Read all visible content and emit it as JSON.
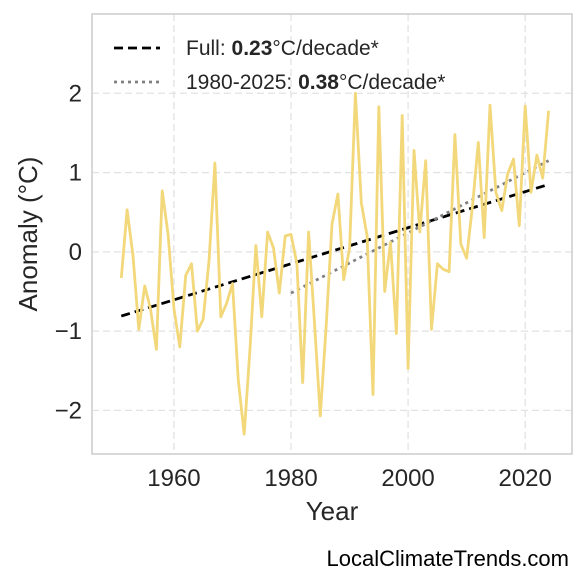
{
  "chart_data": {
    "type": "line",
    "xlabel": "Year",
    "ylabel": "Anomaly (°C)",
    "xlim": [
      1946,
      2028
    ],
    "ylim": [
      -2.55,
      3.0
    ],
    "xticks": [
      1960,
      1980,
      2000,
      2020
    ],
    "yticks": [
      -2,
      -1,
      0,
      1,
      2
    ],
    "ytick_labels": [
      "−2",
      "−1",
      "0",
      "1",
      "2"
    ],
    "grid": true,
    "legend_position": "top-left",
    "series": [
      {
        "color": "#f2d87a",
        "x": [
          1951,
          1952,
          1953,
          1954,
          1955,
          1956,
          1957,
          1958,
          1959,
          1960,
          1961,
          1962,
          1963,
          1964,
          1965,
          1966,
          1967,
          1968,
          1969,
          1970,
          1971,
          1972,
          1973,
          1974,
          1975,
          1976,
          1977,
          1978,
          1979,
          1980,
          1981,
          1982,
          1983,
          1984,
          1985,
          1986,
          1987,
          1988,
          1989,
          1990,
          1991,
          1992,
          1993,
          1994,
          1995,
          1996,
          1997,
          1998,
          1999,
          2000,
          2001,
          2002,
          2003,
          2004,
          2005,
          2006,
          2007,
          2008,
          2009,
          2010,
          2011,
          2012,
          2013,
          2014,
          2015,
          2016,
          2017,
          2018,
          2019,
          2020,
          2021,
          2022,
          2023,
          2024
        ],
        "y": [
          -0.33,
          0.53,
          -0.05,
          -0.98,
          -0.43,
          -0.72,
          -1.23,
          0.77,
          0.22,
          -0.72,
          -1.2,
          -0.3,
          -0.15,
          -1.0,
          -0.85,
          -0.1,
          1.12,
          -0.82,
          -0.65,
          -0.4,
          -1.62,
          -2.3,
          -1.22,
          0.08,
          -0.82,
          0.25,
          0.05,
          -0.52,
          0.2,
          0.22,
          -0.15,
          -1.65,
          0.25,
          -0.88,
          -2.07,
          -0.95,
          0.35,
          0.73,
          -0.35,
          0.05,
          2.0,
          0.62,
          0.2,
          -1.8,
          1.83,
          -0.5,
          0.12,
          -1.03,
          1.72,
          -1.47,
          1.28,
          0.25,
          1.15,
          -0.98,
          -0.15,
          -0.22,
          -0.25,
          1.48,
          0.1,
          -0.08,
          0.58,
          1.38,
          0.18,
          1.85,
          0.75,
          0.52,
          0.98,
          1.17,
          0.33,
          1.84,
          0.75,
          1.22,
          0.93,
          1.78
        ]
      }
    ],
    "trends": [
      {
        "name_prefix": "Full: ",
        "name_value": "0.23",
        "name_suffix": "°C/decade*",
        "style": "dashed",
        "color": "#000000",
        "x": [
          1951,
          2024
        ],
        "y": [
          -0.81,
          0.85
        ]
      },
      {
        "name_prefix": "1980-2025: ",
        "name_value": "0.38",
        "name_suffix": "°C/decade*",
        "style": "dotted",
        "color": "#808080",
        "x": [
          1980,
          2024
        ],
        "y": [
          -0.52,
          1.15
        ]
      }
    ]
  },
  "footer": {
    "text": "LocalClimateTrends.com"
  }
}
